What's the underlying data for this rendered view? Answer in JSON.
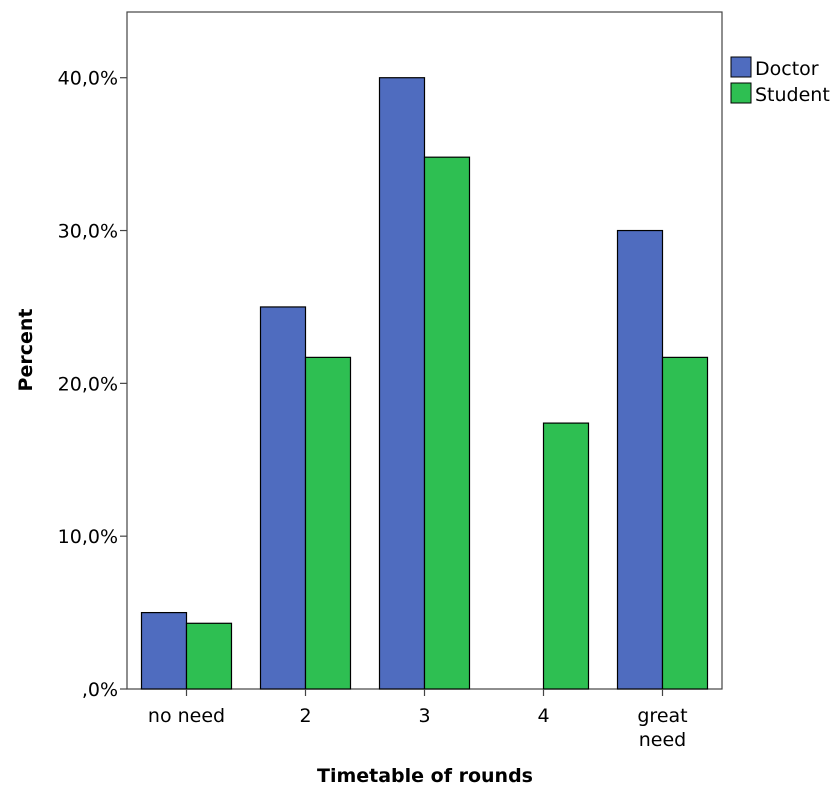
{
  "chart_data": {
    "type": "bar",
    "categories": [
      [
        "no need"
      ],
      [
        "2"
      ],
      [
        "3"
      ],
      [
        "4"
      ],
      [
        "great",
        "need"
      ]
    ],
    "series": [
      {
        "name": "Doctor",
        "values": [
          5.0,
          25.0,
          40.0,
          0.0,
          30.0
        ],
        "color": "#4f6cbf"
      },
      {
        "name": "Student",
        "values": [
          4.3,
          21.7,
          34.8,
          17.4,
          21.7
        ],
        "color": "#2ebf52"
      }
    ],
    "xlabel": "Timetable of rounds",
    "ylabel": "Percent",
    "ylim": [
      0,
      44.3
    ],
    "yticks": [
      0,
      10,
      20,
      30,
      40
    ],
    "ytick_labels": [
      ",0%",
      "10,0%",
      "20,0%",
      "30,0%",
      "40,0%"
    ],
    "legend_position": "right",
    "grid": false
  }
}
